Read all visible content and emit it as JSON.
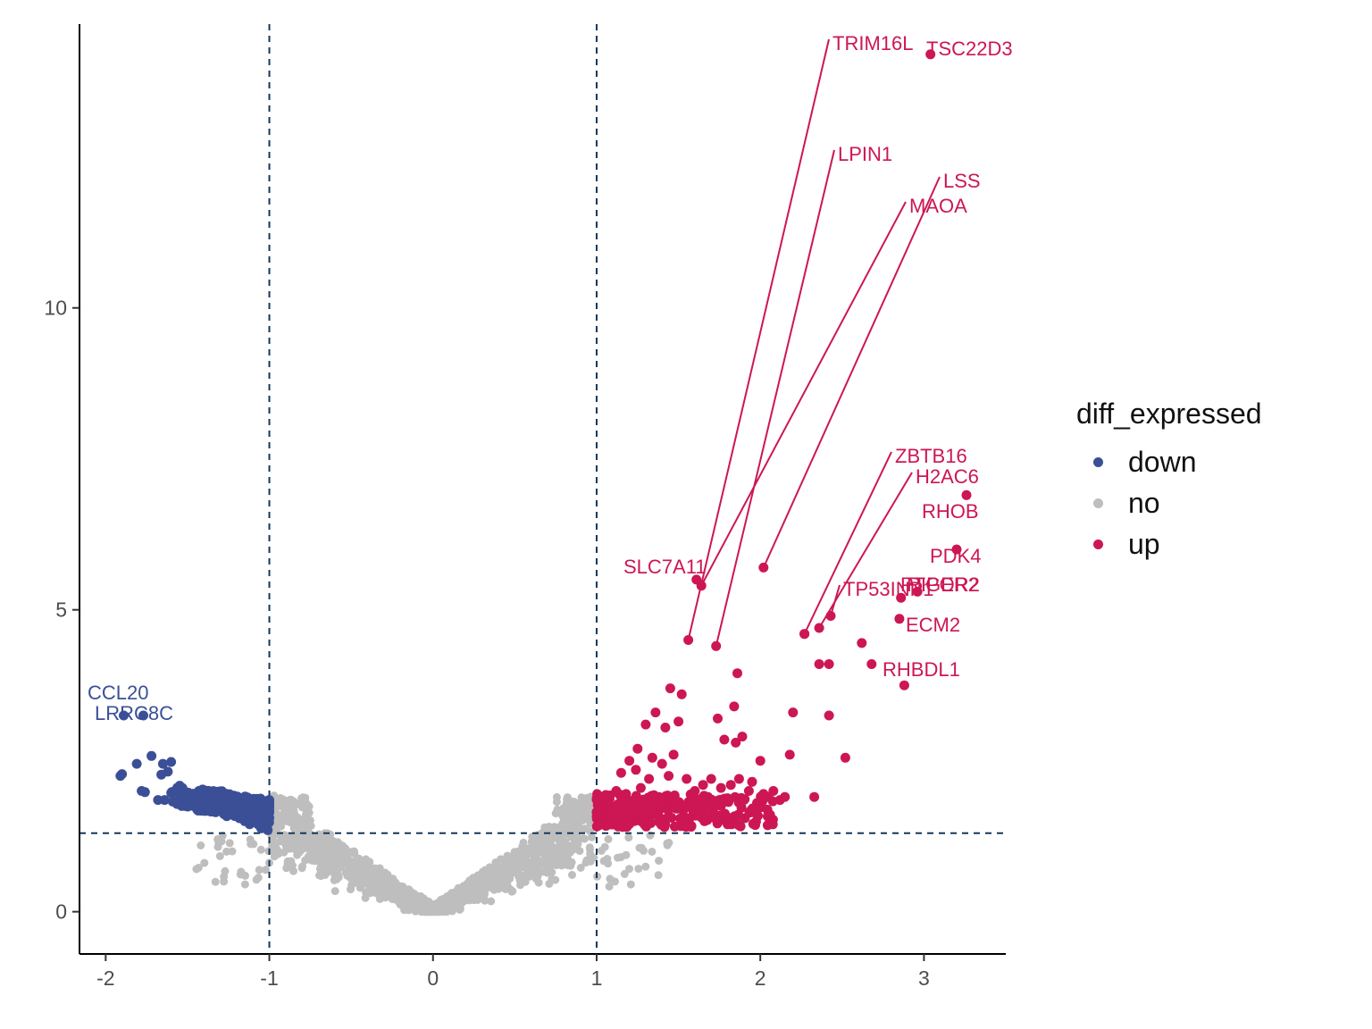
{
  "chart_data": {
    "type": "scatter",
    "title": "",
    "xlabel": "",
    "ylabel": "",
    "xlim": [
      -2.16,
      3.5
    ],
    "ylim": [
      -0.7,
      14.7
    ],
    "x_ticks": [
      -2,
      -1,
      0,
      1,
      2,
      3
    ],
    "y_ticks": [
      0,
      5,
      10
    ],
    "x_tick_labels": [
      "-2",
      "-1",
      "0",
      "1",
      "2",
      "3"
    ],
    "y_tick_labels": [
      "0",
      "5",
      "10"
    ],
    "thresholds": {
      "x": [
        -1,
        1
      ],
      "y": 1.3
    },
    "grid": false,
    "legend": {
      "title": "diff_expressed",
      "placement": "right",
      "entries": [
        "down",
        "no",
        "up"
      ]
    },
    "colors": {
      "down": "#3b4f97",
      "no": "#bebebe",
      "up": "#cd1654",
      "threshold_line": "#13385b"
    },
    "labeled_points": [
      {
        "gene": "TSC22D3",
        "x": 3.04,
        "y": 14.2,
        "group": "up"
      },
      {
        "gene": "TRIM16L",
        "x": 1.56,
        "y": 4.5,
        "group": "up"
      },
      {
        "gene": "LPIN1",
        "x": 1.73,
        "y": 4.4,
        "group": "up"
      },
      {
        "gene": "LSS",
        "x": 2.02,
        "y": 5.7,
        "group": "up"
      },
      {
        "gene": "MAOA",
        "x": 1.64,
        "y": 5.4,
        "group": "up"
      },
      {
        "gene": "SLC7A11",
        "x": 1.61,
        "y": 5.5,
        "group": "up"
      },
      {
        "gene": "ZBTB16",
        "x": 2.27,
        "y": 4.6,
        "group": "up"
      },
      {
        "gene": "H2AC6",
        "x": 2.36,
        "y": 4.7,
        "group": "up"
      },
      {
        "gene": "RHOB",
        "x": 3.26,
        "y": 6.9,
        "group": "up"
      },
      {
        "gene": "PDK4",
        "x": 3.2,
        "y": 6.0,
        "group": "up"
      },
      {
        "gene": "PTGER2",
        "x": 2.96,
        "y": 5.3,
        "group": "up"
      },
      {
        "gene": "RIPOR2",
        "x": 2.86,
        "y": 5.2,
        "group": "up"
      },
      {
        "gene": "TP53INP1",
        "x": 2.43,
        "y": 4.9,
        "group": "up"
      },
      {
        "gene": "ECM2",
        "x": 2.85,
        "y": 4.85,
        "group": "up"
      },
      {
        "gene": "RHBDL1",
        "x": 2.88,
        "y": 3.75,
        "group": "up"
      },
      {
        "gene": "CCL20",
        "x": -1.89,
        "y": 3.25,
        "group": "down"
      },
      {
        "gene": "LRRC8C",
        "x": -1.77,
        "y": 3.25,
        "group": "down"
      }
    ],
    "series": [
      {
        "name": "down",
        "points": [
          [
            -1.91,
            2.25
          ],
          [
            -1.9,
            2.28
          ],
          [
            -1.81,
            2.45
          ],
          [
            -1.78,
            2.0
          ],
          [
            -1.76,
            1.98
          ],
          [
            -1.72,
            2.58
          ],
          [
            -1.68,
            1.85
          ],
          [
            -1.66,
            2.27
          ],
          [
            -1.65,
            2.45
          ],
          [
            -1.64,
            1.85
          ],
          [
            -1.62,
            2.32
          ],
          [
            -1.6,
            2.48
          ],
          [
            -1.57,
            2.0
          ],
          [
            -1.55,
            1.9
          ],
          [
            -1.53,
            2.0
          ],
          [
            -1.52,
            1.86
          ],
          [
            -1.5,
            1.78
          ],
          [
            -1.49,
            1.95
          ],
          [
            -1.47,
            1.86
          ],
          [
            -1.45,
            1.75
          ],
          [
            -1.43,
            2.0
          ],
          [
            -1.42,
            1.82
          ],
          [
            -1.4,
            1.9
          ],
          [
            -1.38,
            1.76
          ],
          [
            -1.37,
            1.98
          ],
          [
            -1.35,
            1.82
          ],
          [
            -1.33,
            1.73
          ],
          [
            -1.31,
            1.88
          ],
          [
            -1.3,
            1.78
          ],
          [
            -1.28,
            1.72
          ],
          [
            -1.26,
            1.62
          ],
          [
            -1.25,
            1.9
          ],
          [
            -1.23,
            1.7
          ],
          [
            -1.22,
            1.6
          ],
          [
            -1.2,
            1.8
          ],
          [
            -1.18,
            1.55
          ],
          [
            -1.17,
            1.68
          ],
          [
            -1.15,
            1.5
          ],
          [
            -1.14,
            1.62
          ],
          [
            -1.12,
            1.45
          ],
          [
            -1.1,
            1.58
          ],
          [
            -1.09,
            1.75
          ],
          [
            -1.07,
            1.45
          ],
          [
            -1.06,
            1.62
          ],
          [
            -1.05,
            1.38
          ],
          [
            -1.03,
            1.5
          ],
          [
            -1.02,
            1.7
          ],
          [
            -1.01,
            1.35
          ]
        ]
      },
      {
        "name": "up",
        "points": [
          [
            1.03,
            1.6
          ],
          [
            1.05,
            1.85
          ],
          [
            1.07,
            1.5
          ],
          [
            1.09,
            1.72
          ],
          [
            1.12,
            2.0
          ],
          [
            1.15,
            2.3
          ],
          [
            1.18,
            1.95
          ],
          [
            1.2,
            2.5
          ],
          [
            1.22,
            1.8
          ],
          [
            1.24,
            2.35
          ],
          [
            1.25,
            2.7
          ],
          [
            1.27,
            2.05
          ],
          [
            1.3,
            3.1
          ],
          [
            1.32,
            2.2
          ],
          [
            1.34,
            2.55
          ],
          [
            1.36,
            3.3
          ],
          [
            1.38,
            1.9
          ],
          [
            1.4,
            2.45
          ],
          [
            1.42,
            3.05
          ],
          [
            1.44,
            2.25
          ],
          [
            1.45,
            3.7
          ],
          [
            1.47,
            2.6
          ],
          [
            1.5,
            3.15
          ],
          [
            1.52,
            3.6
          ],
          [
            1.55,
            2.2
          ],
          [
            1.57,
            1.75
          ],
          [
            1.6,
            2.0
          ],
          [
            1.62,
            1.85
          ],
          [
            1.65,
            2.1
          ],
          [
            1.68,
            1.9
          ],
          [
            1.7,
            2.2
          ],
          [
            1.72,
            1.78
          ],
          [
            1.74,
            3.2
          ],
          [
            1.76,
            2.05
          ],
          [
            1.78,
            2.85
          ],
          [
            1.8,
            1.88
          ],
          [
            1.82,
            2.1
          ],
          [
            1.84,
            3.4
          ],
          [
            1.85,
            2.8
          ],
          [
            1.87,
            2.2
          ],
          [
            1.89,
            2.9
          ],
          [
            1.9,
            1.85
          ],
          [
            1.93,
            2.0
          ],
          [
            1.95,
            2.15
          ],
          [
            1.98,
            1.8
          ],
          [
            2.0,
            2.5
          ],
          [
            2.02,
            1.95
          ],
          [
            2.05,
            1.9
          ],
          [
            2.08,
            2.0
          ],
          [
            2.12,
            1.85
          ],
          [
            2.15,
            1.9
          ],
          [
            2.18,
            2.6
          ],
          [
            2.2,
            3.3
          ],
          [
            2.33,
            1.9
          ],
          [
            2.42,
            3.25
          ],
          [
            2.52,
            2.55
          ],
          [
            2.36,
            4.1
          ],
          [
            2.42,
            4.1
          ],
          [
            2.62,
            4.45
          ],
          [
            2.68,
            4.1
          ],
          [
            2.27,
            4.6
          ],
          [
            1.86,
            3.95
          ]
        ]
      },
      {
        "name": "no",
        "shape": "V-shaped cloud around x=0 between x=-1 and x=1, y from 0 to about 2"
      }
    ]
  }
}
